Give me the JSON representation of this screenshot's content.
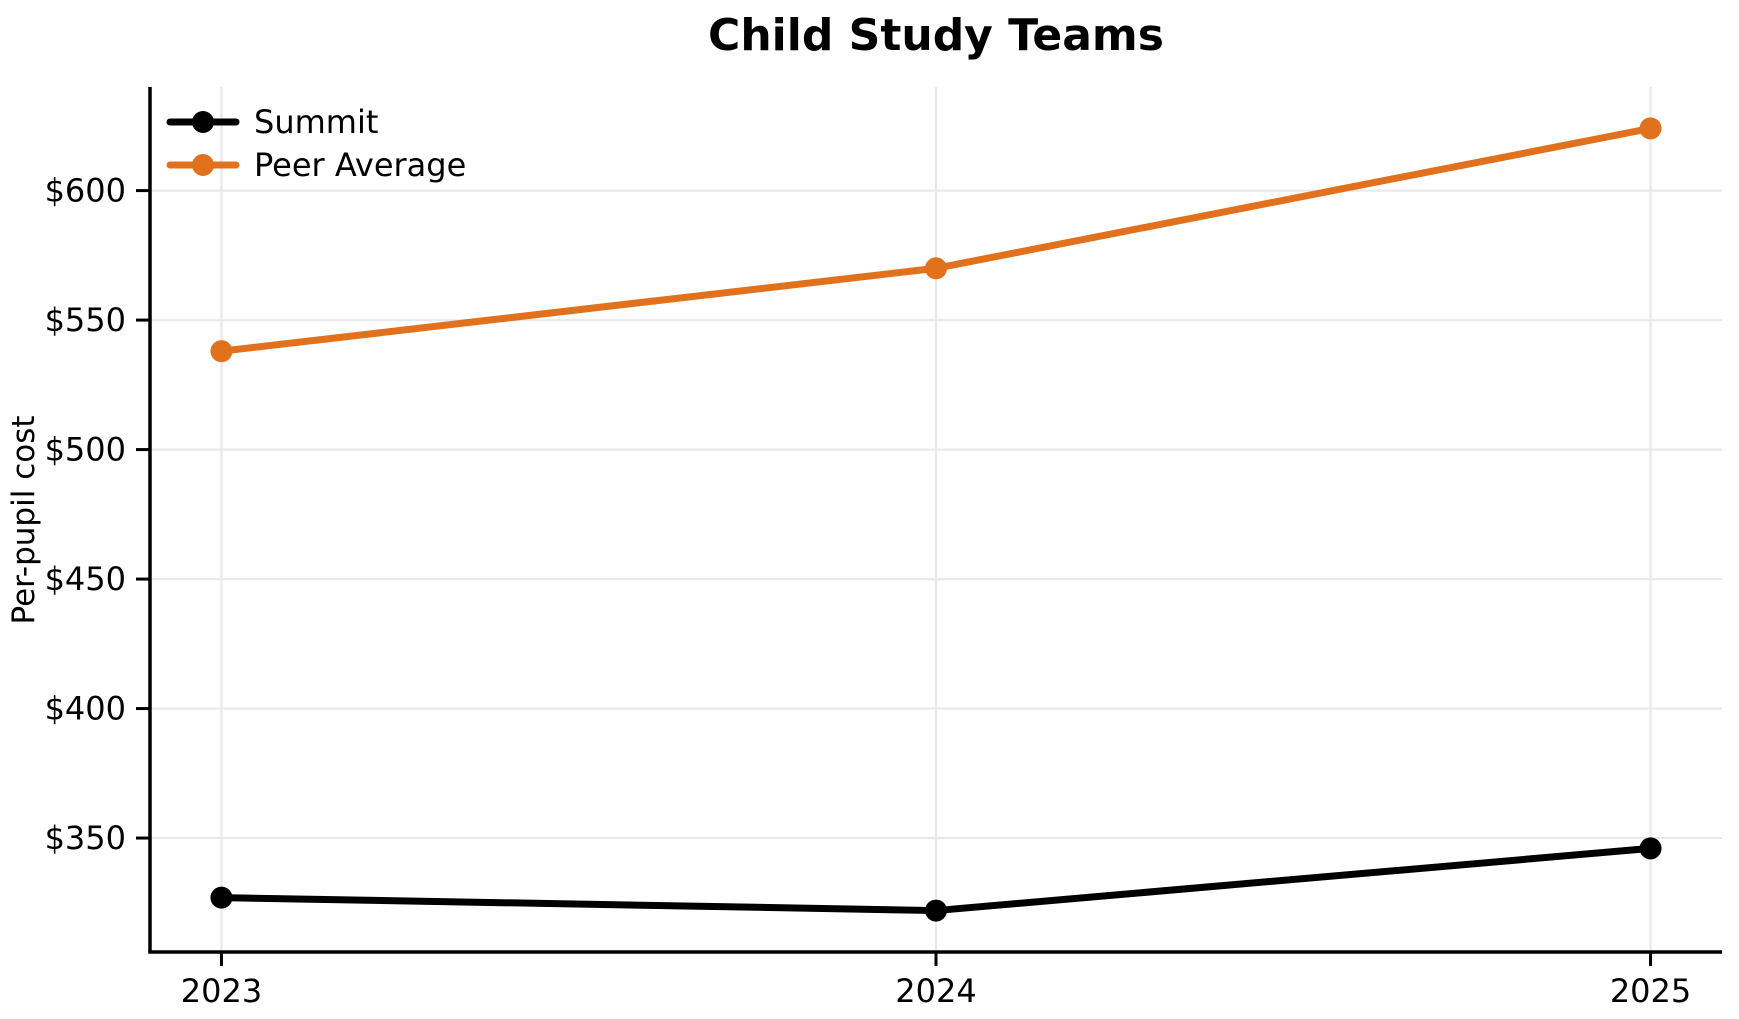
{
  "chart_data": {
    "type": "line",
    "title": "Child Study Teams",
    "xlabel": "",
    "ylabel": "Per-pupil cost",
    "x": [
      2023,
      2024,
      2025
    ],
    "x_tick_labels": [
      "2023",
      "2024",
      "2025"
    ],
    "series": [
      {
        "name": "Summit",
        "color": "#000000",
        "values": [
          327,
          322,
          346
        ]
      },
      {
        "name": "Peer Average",
        "color": "#E2711D",
        "values": [
          538,
          570,
          624
        ]
      }
    ],
    "y_ticks": [
      350,
      400,
      450,
      500,
      550,
      600
    ],
    "y_tick_prefix": "$",
    "ylim": [
      306,
      640
    ],
    "xlim": [
      2022.9,
      2025.1
    ],
    "grid": true,
    "legend_position": "upper-left",
    "colors": {
      "background": "#ffffff",
      "grid": "#e8e8e8",
      "axis": "#000000",
      "text": "#000000"
    }
  }
}
